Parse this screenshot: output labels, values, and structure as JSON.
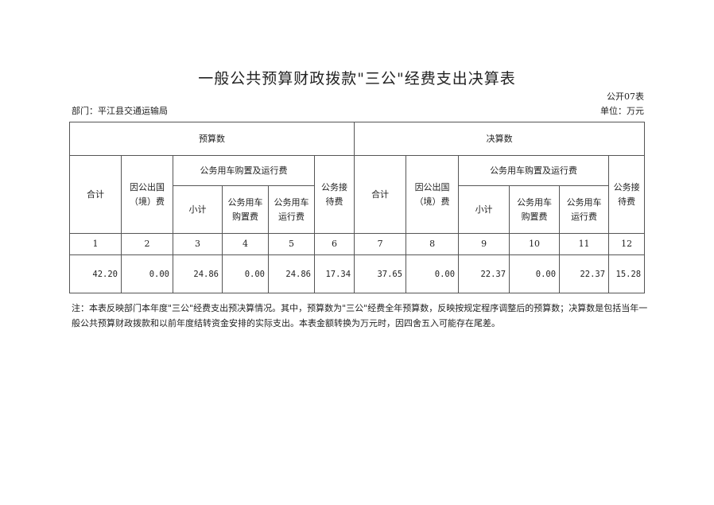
{
  "title": "一般公共预算财政拨款\"三公\"经费支出决算表",
  "form_no": "公开07表",
  "department": "部门：平江县交通运输局",
  "unit": "单位：万元",
  "table": {
    "group_budget": "预算数",
    "group_final": "决算数",
    "total": "合计",
    "abroad": "因公出国（境）费",
    "vehicle": "公务用车购置及运行费",
    "subtotal": "小计",
    "purchase": "公务用车购置费",
    "operation": "公务用车运行费",
    "reception": "公务接待费",
    "col_numbers": [
      "1",
      "2",
      "3",
      "4",
      "5",
      "6",
      "7",
      "8",
      "9",
      "10",
      "11",
      "12"
    ],
    "values": [
      "42.20",
      "0.00",
      "24.86",
      "0.00",
      "24.86",
      "17.34",
      "37.65",
      "0.00",
      "22.37",
      "0.00",
      "22.37",
      "15.28"
    ]
  },
  "note": "注：本表反映部门本年度\"三公\"经费支出预决算情况。其中，预算数为\"三公\"经费全年预算数，反映按规定程序调整后的预算数；决算数是包括当年一般公共预算财政拨款和以前年度结转资金安排的实际支出。本表金额转换为万元时，因四舍五入可能存在尾差。"
}
